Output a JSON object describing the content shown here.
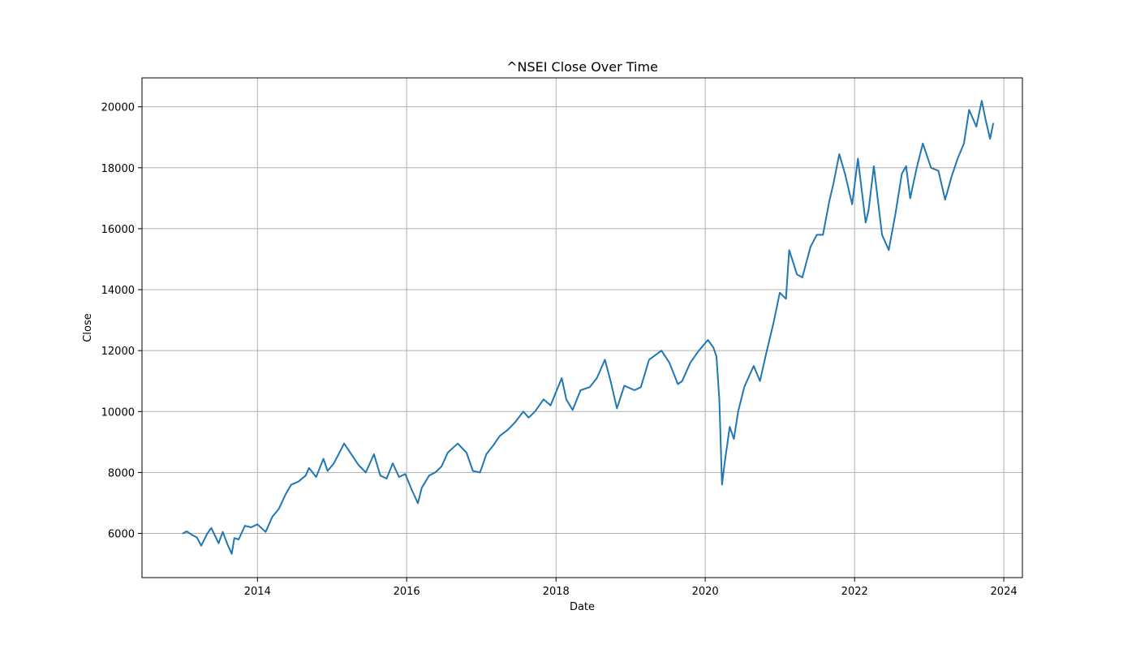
{
  "chart_data": {
    "type": "line",
    "title": "^NSEI Close Over Time",
    "xlabel": "Date",
    "ylabel": "Close",
    "x_ticks": [
      "2014",
      "2016",
      "2018",
      "2020",
      "2022",
      "2024"
    ],
    "y_ticks": [
      "6000",
      "8000",
      "10000",
      "12000",
      "14000",
      "16000",
      "18000",
      "20000"
    ],
    "xlim": [
      "2012-06-15",
      "2024-04-01"
    ],
    "ylim": [
      4550,
      20950
    ],
    "grid": true,
    "series": [
      {
        "color": "#1f77b4",
        "points": [
          [
            "2013-01-01",
            6000
          ],
          [
            "2013-01-20",
            6070
          ],
          [
            "2013-02-15",
            5950
          ],
          [
            "2013-03-10",
            5870
          ],
          [
            "2013-04-01",
            5600
          ],
          [
            "2013-05-01",
            6000
          ],
          [
            "2013-05-20",
            6180
          ],
          [
            "2013-06-25",
            5680
          ],
          [
            "2013-07-15",
            6050
          ],
          [
            "2013-08-10",
            5600
          ],
          [
            "2013-08-28",
            5330
          ],
          [
            "2013-09-10",
            5850
          ],
          [
            "2013-10-01",
            5800
          ],
          [
            "2013-11-01",
            6250
          ],
          [
            "2013-12-01",
            6200
          ],
          [
            "2014-01-01",
            6300
          ],
          [
            "2014-02-10",
            6050
          ],
          [
            "2014-03-15",
            6550
          ],
          [
            "2014-04-15",
            6800
          ],
          [
            "2014-05-20",
            7300
          ],
          [
            "2014-06-15",
            7600
          ],
          [
            "2014-07-20",
            7700
          ],
          [
            "2014-08-25",
            7900
          ],
          [
            "2014-09-10",
            8150
          ],
          [
            "2014-10-15",
            7850
          ],
          [
            "2014-11-20",
            8450
          ],
          [
            "2014-12-10",
            8050
          ],
          [
            "2015-01-10",
            8300
          ],
          [
            "2015-03-01",
            8950
          ],
          [
            "2015-04-15",
            8500
          ],
          [
            "2015-05-10",
            8250
          ],
          [
            "2015-06-15",
            8000
          ],
          [
            "2015-07-25",
            8600
          ],
          [
            "2015-08-25",
            7900
          ],
          [
            "2015-09-25",
            7800
          ],
          [
            "2015-10-25",
            8300
          ],
          [
            "2015-11-25",
            7850
          ],
          [
            "2015-12-25",
            7950
          ],
          [
            "2016-01-25",
            7450
          ],
          [
            "2016-02-25",
            6990
          ],
          [
            "2016-03-15",
            7500
          ],
          [
            "2016-04-20",
            7900
          ],
          [
            "2016-05-20",
            8000
          ],
          [
            "2016-06-20",
            8200
          ],
          [
            "2016-07-20",
            8650
          ],
          [
            "2016-09-07",
            8950
          ],
          [
            "2016-10-20",
            8650
          ],
          [
            "2016-11-20",
            8050
          ],
          [
            "2016-12-25",
            8000
          ],
          [
            "2017-01-25",
            8600
          ],
          [
            "2017-03-01",
            8900
          ],
          [
            "2017-04-01",
            9200
          ],
          [
            "2017-05-10",
            9400
          ],
          [
            "2017-06-15",
            9650
          ],
          [
            "2017-07-25",
            10000
          ],
          [
            "2017-08-20",
            9800
          ],
          [
            "2017-09-20",
            10000
          ],
          [
            "2017-11-01",
            10400
          ],
          [
            "2017-12-05",
            10200
          ],
          [
            "2018-01-29",
            11100
          ],
          [
            "2018-02-20",
            10400
          ],
          [
            "2018-03-23",
            10050
          ],
          [
            "2018-05-01",
            10700
          ],
          [
            "2018-06-15",
            10800
          ],
          [
            "2018-07-20",
            11100
          ],
          [
            "2018-08-28",
            11700
          ],
          [
            "2018-09-25",
            11000
          ],
          [
            "2018-10-26",
            10100
          ],
          [
            "2018-12-01",
            10850
          ],
          [
            "2019-01-20",
            10700
          ],
          [
            "2019-02-20",
            10800
          ],
          [
            "2019-04-01",
            11700
          ],
          [
            "2019-06-01",
            12000
          ],
          [
            "2019-07-10",
            11600
          ],
          [
            "2019-08-20",
            10900
          ],
          [
            "2019-09-10",
            11000
          ],
          [
            "2019-10-20",
            11600
          ],
          [
            "2019-12-01",
            12000
          ],
          [
            "2020-01-14",
            12350
          ],
          [
            "2020-02-10",
            12100
          ],
          [
            "2020-02-25",
            11800
          ],
          [
            "2020-03-10",
            10400
          ],
          [
            "2020-03-23",
            7600
          ],
          [
            "2020-04-05",
            8300
          ],
          [
            "2020-04-30",
            9500
          ],
          [
            "2020-05-20",
            9100
          ],
          [
            "2020-06-10",
            10000
          ],
          [
            "2020-07-10",
            10800
          ],
          [
            "2020-08-25",
            11500
          ],
          [
            "2020-09-25",
            11000
          ],
          [
            "2020-10-25",
            11900
          ],
          [
            "2020-11-30",
            12900
          ],
          [
            "2020-12-31",
            13900
          ],
          [
            "2021-01-30",
            13700
          ],
          [
            "2021-02-15",
            15300
          ],
          [
            "2021-03-25",
            14500
          ],
          [
            "2021-04-20",
            14400
          ],
          [
            "2021-05-30",
            15400
          ],
          [
            "2021-06-30",
            15800
          ],
          [
            "2021-07-30",
            15800
          ],
          [
            "2021-08-30",
            16900
          ],
          [
            "2021-09-20",
            17500
          ],
          [
            "2021-10-18",
            18450
          ],
          [
            "2021-11-15",
            17800
          ],
          [
            "2021-12-20",
            16800
          ],
          [
            "2022-01-17",
            18300
          ],
          [
            "2022-02-24",
            16200
          ],
          [
            "2022-03-10",
            16600
          ],
          [
            "2022-04-05",
            18050
          ],
          [
            "2022-05-15",
            15800
          ],
          [
            "2022-06-17",
            15300
          ],
          [
            "2022-07-20",
            16500
          ],
          [
            "2022-08-20",
            17800
          ],
          [
            "2022-09-10",
            18050
          ],
          [
            "2022-09-30",
            17000
          ],
          [
            "2022-11-01",
            18000
          ],
          [
            "2022-12-01",
            18800
          ],
          [
            "2023-01-10",
            18000
          ],
          [
            "2023-02-15",
            17900
          ],
          [
            "2023-03-20",
            16950
          ],
          [
            "2023-04-20",
            17700
          ],
          [
            "2023-05-20",
            18300
          ],
          [
            "2023-06-20",
            18800
          ],
          [
            "2023-07-15",
            19900
          ],
          [
            "2023-08-20",
            19350
          ],
          [
            "2023-09-15",
            20200
          ],
          [
            "2023-10-05",
            19550
          ],
          [
            "2023-10-26",
            18950
          ],
          [
            "2023-11-10",
            19450
          ]
        ]
      }
    ]
  }
}
